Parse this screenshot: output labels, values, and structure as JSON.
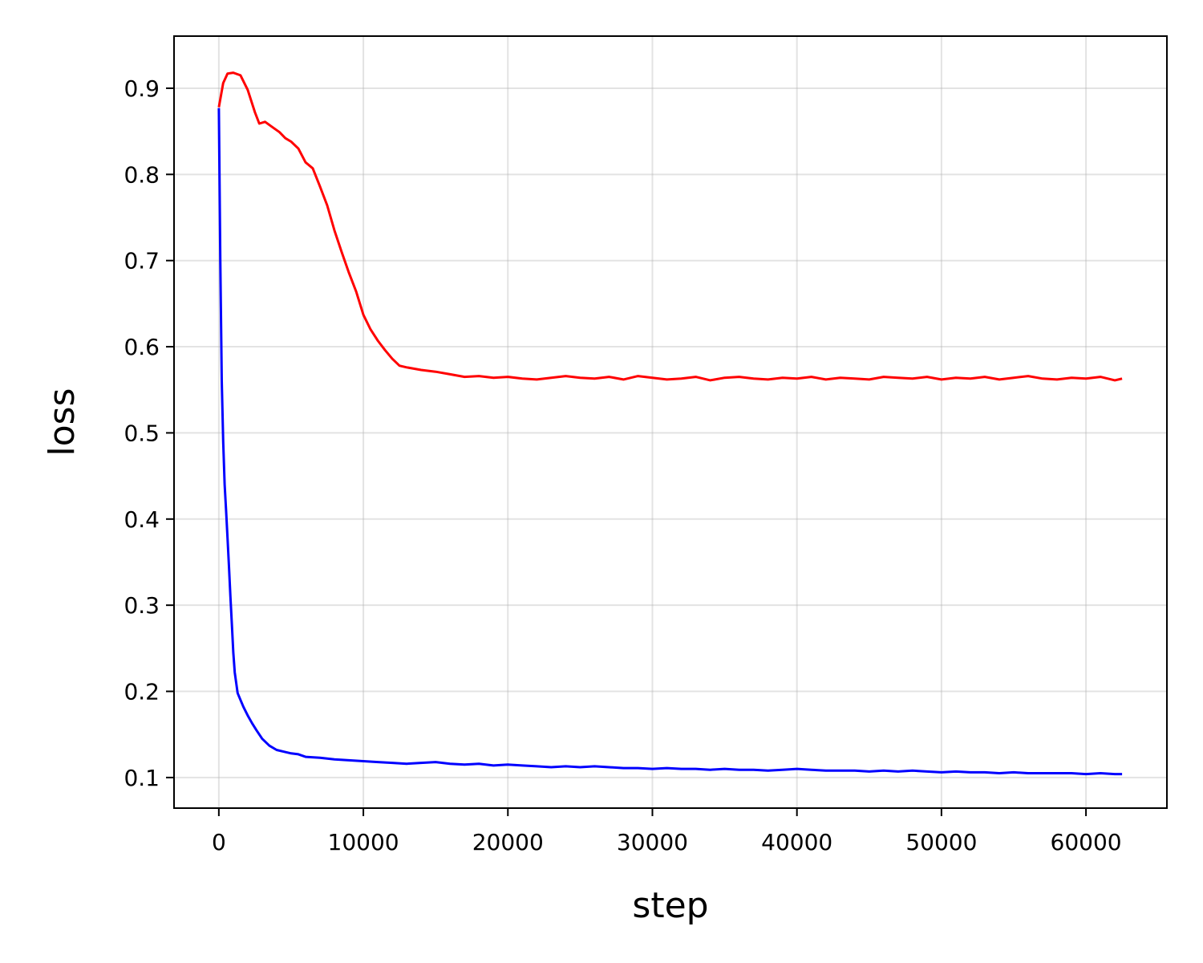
{
  "chart_data": {
    "type": "line",
    "xlabel": "step",
    "ylabel": "loss",
    "xlim": [
      -3100,
      65600
    ],
    "ylim": [
      0.0645,
      0.9605
    ],
    "grid": true,
    "x_ticks": [
      0,
      10000,
      20000,
      30000,
      40000,
      50000,
      60000
    ],
    "x_tick_labels": [
      "0",
      "10000",
      "20000",
      "30000",
      "40000",
      "50000",
      "60000"
    ],
    "y_ticks": [
      0.1,
      0.2,
      0.3,
      0.4,
      0.5,
      0.6,
      0.7,
      0.8,
      0.9
    ],
    "y_tick_labels": [
      "0.1",
      "0.2",
      "0.3",
      "0.4",
      "0.5",
      "0.6",
      "0.7",
      "0.8",
      "0.9"
    ],
    "series": [
      {
        "color": "#ff0000",
        "points": [
          [
            0,
            0.878
          ],
          [
            300,
            0.906
          ],
          [
            600,
            0.917
          ],
          [
            1000,
            0.918
          ],
          [
            1500,
            0.915
          ],
          [
            2000,
            0.898
          ],
          [
            2500,
            0.872
          ],
          [
            2800,
            0.859
          ],
          [
            3200,
            0.861
          ],
          [
            3700,
            0.855
          ],
          [
            4200,
            0.849
          ],
          [
            4600,
            0.842
          ],
          [
            5000,
            0.838
          ],
          [
            5500,
            0.83
          ],
          [
            6000,
            0.814
          ],
          [
            6500,
            0.807
          ],
          [
            7000,
            0.786
          ],
          [
            7500,
            0.764
          ],
          [
            8000,
            0.735
          ],
          [
            8500,
            0.71
          ],
          [
            9000,
            0.686
          ],
          [
            9500,
            0.664
          ],
          [
            10000,
            0.637
          ],
          [
            10500,
            0.62
          ],
          [
            11000,
            0.607
          ],
          [
            11500,
            0.596
          ],
          [
            12000,
            0.586
          ],
          [
            12500,
            0.578
          ],
          [
            13000,
            0.576
          ],
          [
            14000,
            0.573
          ],
          [
            15000,
            0.571
          ],
          [
            16000,
            0.568
          ],
          [
            17000,
            0.565
          ],
          [
            18000,
            0.566
          ],
          [
            19000,
            0.564
          ],
          [
            20000,
            0.565
          ],
          [
            21000,
            0.563
          ],
          [
            22000,
            0.562
          ],
          [
            23000,
            0.564
          ],
          [
            24000,
            0.566
          ],
          [
            25000,
            0.564
          ],
          [
            26000,
            0.563
          ],
          [
            27000,
            0.565
          ],
          [
            28000,
            0.562
          ],
          [
            29000,
            0.566
          ],
          [
            30000,
            0.564
          ],
          [
            31000,
            0.562
          ],
          [
            32000,
            0.563
          ],
          [
            33000,
            0.565
          ],
          [
            34000,
            0.561
          ],
          [
            35000,
            0.564
          ],
          [
            36000,
            0.565
          ],
          [
            37000,
            0.563
          ],
          [
            38000,
            0.562
          ],
          [
            39000,
            0.564
          ],
          [
            40000,
            0.563
          ],
          [
            41000,
            0.565
          ],
          [
            42000,
            0.562
          ],
          [
            43000,
            0.564
          ],
          [
            44000,
            0.563
          ],
          [
            45000,
            0.562
          ],
          [
            46000,
            0.565
          ],
          [
            47000,
            0.564
          ],
          [
            48000,
            0.563
          ],
          [
            49000,
            0.565
          ],
          [
            50000,
            0.562
          ],
          [
            51000,
            0.564
          ],
          [
            52000,
            0.563
          ],
          [
            53000,
            0.565
          ],
          [
            54000,
            0.562
          ],
          [
            55000,
            0.564
          ],
          [
            56000,
            0.566
          ],
          [
            57000,
            0.563
          ],
          [
            58000,
            0.562
          ],
          [
            59000,
            0.564
          ],
          [
            60000,
            0.563
          ],
          [
            61000,
            0.565
          ],
          [
            62000,
            0.561
          ],
          [
            62500,
            0.563
          ]
        ]
      },
      {
        "color": "#0000ff",
        "points": [
          [
            0,
            0.877
          ],
          [
            100,
            0.7
          ],
          [
            200,
            0.56
          ],
          [
            300,
            0.49
          ],
          [
            400,
            0.44
          ],
          [
            500,
            0.41
          ],
          [
            600,
            0.378
          ],
          [
            700,
            0.345
          ],
          [
            800,
            0.31
          ],
          [
            900,
            0.278
          ],
          [
            1000,
            0.245
          ],
          [
            1100,
            0.222
          ],
          [
            1200,
            0.21
          ],
          [
            1300,
            0.198
          ],
          [
            1500,
            0.19
          ],
          [
            1700,
            0.182
          ],
          [
            2000,
            0.172
          ],
          [
            2300,
            0.163
          ],
          [
            2600,
            0.155
          ],
          [
            3000,
            0.145
          ],
          [
            3500,
            0.137
          ],
          [
            4000,
            0.132
          ],
          [
            4500,
            0.13
          ],
          [
            5000,
            0.128
          ],
          [
            5500,
            0.127
          ],
          [
            6000,
            0.124
          ],
          [
            7000,
            0.123
          ],
          [
            8000,
            0.121
          ],
          [
            9000,
            0.12
          ],
          [
            10000,
            0.119
          ],
          [
            11000,
            0.118
          ],
          [
            12000,
            0.117
          ],
          [
            13000,
            0.116
          ],
          [
            14000,
            0.117
          ],
          [
            15000,
            0.118
          ],
          [
            16000,
            0.116
          ],
          [
            17000,
            0.115
          ],
          [
            18000,
            0.116
          ],
          [
            19000,
            0.114
          ],
          [
            20000,
            0.115
          ],
          [
            21000,
            0.114
          ],
          [
            22000,
            0.113
          ],
          [
            23000,
            0.112
          ],
          [
            24000,
            0.113
          ],
          [
            25000,
            0.112
          ],
          [
            26000,
            0.113
          ],
          [
            27000,
            0.112
          ],
          [
            28000,
            0.111
          ],
          [
            29000,
            0.111
          ],
          [
            30000,
            0.11
          ],
          [
            31000,
            0.111
          ],
          [
            32000,
            0.11
          ],
          [
            33000,
            0.11
          ],
          [
            34000,
            0.109
          ],
          [
            35000,
            0.11
          ],
          [
            36000,
            0.109
          ],
          [
            37000,
            0.109
          ],
          [
            38000,
            0.108
          ],
          [
            39000,
            0.109
          ],
          [
            40000,
            0.11
          ],
          [
            41000,
            0.109
          ],
          [
            42000,
            0.108
          ],
          [
            43000,
            0.108
          ],
          [
            44000,
            0.108
          ],
          [
            45000,
            0.107
          ],
          [
            46000,
            0.108
          ],
          [
            47000,
            0.107
          ],
          [
            48000,
            0.108
          ],
          [
            49000,
            0.107
          ],
          [
            50000,
            0.106
          ],
          [
            51000,
            0.107
          ],
          [
            52000,
            0.106
          ],
          [
            53000,
            0.106
          ],
          [
            54000,
            0.105
          ],
          [
            55000,
            0.106
          ],
          [
            56000,
            0.105
          ],
          [
            57000,
            0.105
          ],
          [
            58000,
            0.105
          ],
          [
            59000,
            0.105
          ],
          [
            60000,
            0.104
          ],
          [
            61000,
            0.105
          ],
          [
            62000,
            0.104
          ],
          [
            62500,
            0.104
          ]
        ]
      }
    ]
  }
}
